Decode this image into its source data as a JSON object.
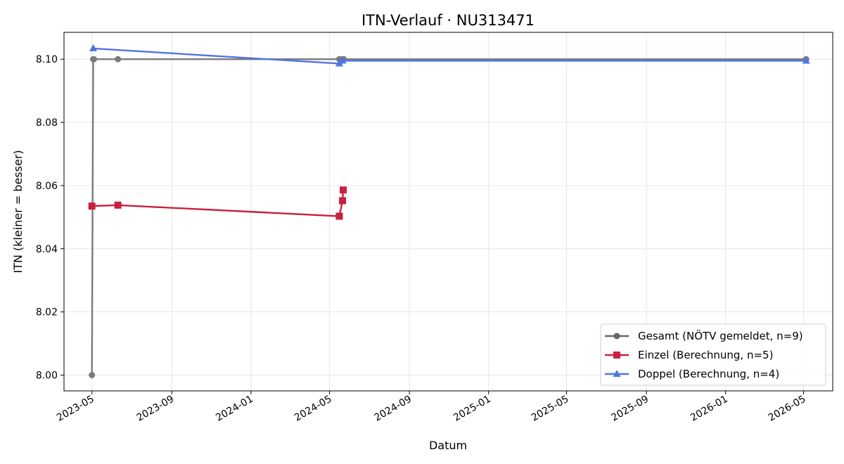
{
  "chart_data": {
    "type": "line",
    "title": "ITN-Verlauf · NU313471",
    "xlabel": "Datum",
    "ylabel": "ITN  (kleiner = besser)",
    "x_range": [
      "2023-03-19",
      "2026-06-15"
    ],
    "ylim": [
      7.995,
      8.1085
    ],
    "x_ticks": [
      "2023-05",
      "2023-09",
      "2024-01",
      "2024-05",
      "2024-09",
      "2025-01",
      "2025-05",
      "2025-09",
      "2026-01",
      "2026-05"
    ],
    "y_ticks": [
      "8.00",
      "8.02",
      "8.04",
      "8.06",
      "8.08",
      "8.10"
    ],
    "grid": true,
    "legend_position": "lower-right",
    "series": [
      {
        "name": "Gesamt (NÖTV gemeldet, n=9)",
        "color": "#666666",
        "marker": "circle",
        "points": [
          {
            "x": "2023-05-01",
            "y": 8.0
          },
          {
            "x": "2023-05-03",
            "y": 8.1
          },
          {
            "x": "2023-05-04",
            "y": 8.1
          },
          {
            "x": "2023-06-10",
            "y": 8.1
          },
          {
            "x": "2024-05-16",
            "y": 8.1
          },
          {
            "x": "2024-05-20",
            "y": 8.1
          },
          {
            "x": "2024-05-22",
            "y": 8.1
          },
          {
            "x": "2024-05-23",
            "y": 8.1
          },
          {
            "x": "2026-05-05",
            "y": 8.1
          }
        ]
      },
      {
        "name": "Einzel (Berechnung, n=5)",
        "color": "#c8203d",
        "marker": "square",
        "points": [
          {
            "x": "2023-05-01",
            "y": 8.0535
          },
          {
            "x": "2023-06-10",
            "y": 8.0538
          },
          {
            "x": "2024-05-16",
            "y": 8.0503
          },
          {
            "x": "2024-05-21",
            "y": 8.0552
          },
          {
            "x": "2024-05-22",
            "y": 8.0586
          }
        ]
      },
      {
        "name": "Doppel (Berechnung, n=4)",
        "color": "#5073e6",
        "marker": "triangle",
        "points": [
          {
            "x": "2023-05-03",
            "y": 8.1034
          },
          {
            "x": "2024-05-16",
            "y": 8.0986
          },
          {
            "x": "2024-05-21",
            "y": 8.0995
          },
          {
            "x": "2026-05-05",
            "y": 8.0995
          }
        ]
      }
    ]
  }
}
